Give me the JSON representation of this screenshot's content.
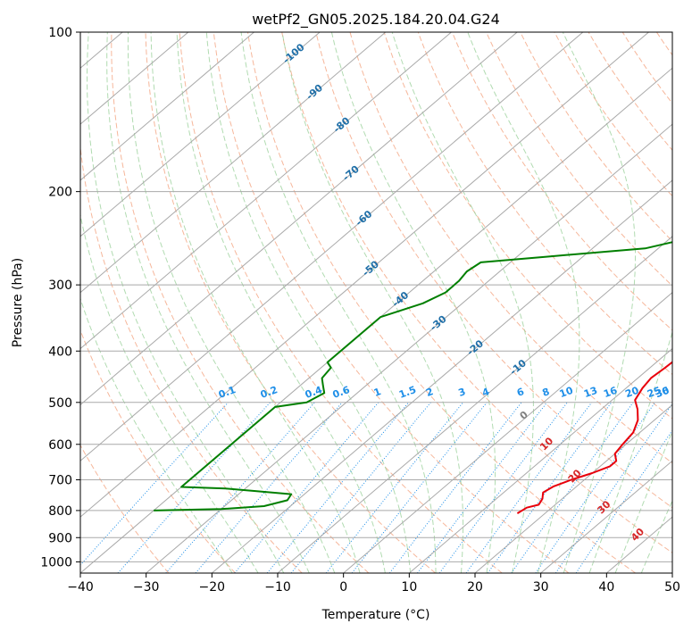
{
  "chart_data": {
    "type": "line",
    "subtype": "skew-t log-p",
    "title": "wetPf2_GN05.2025.184.20.04.G24",
    "xlabel": "Temperature (°C)",
    "ylabel": "Pressure (hPa)",
    "xlim": [
      -40,
      50
    ],
    "ylim": [
      1050,
      100
    ],
    "y_scale": "log",
    "grid": true,
    "x_ticks": [
      -40,
      -30,
      -20,
      -10,
      0,
      10,
      20,
      30,
      40,
      50
    ],
    "x_tick_labels": [
      "−40",
      "−30",
      "−20",
      "−10",
      "0",
      "10",
      "20",
      "30",
      "40",
      "50"
    ],
    "y_ticks": [
      100,
      200,
      300,
      400,
      500,
      600,
      700,
      800,
      900,
      1000
    ],
    "y_tick_labels": [
      "100",
      "200",
      "300",
      "400",
      "500",
      "600",
      "700",
      "800",
      "900",
      "1000"
    ],
    "colors": {
      "temperature": "#e8000b",
      "dewpoint": "#007f00",
      "isotherm": "#a9a9a9",
      "dry_adiabat": "#f4a582",
      "moist_adiabat": "#9ed29e",
      "mixing_ratio": "#1f8fe8",
      "isotherm_label": "#1f6fa8",
      "moist_label": "#d62728",
      "zero_label": "#808080"
    },
    "series": [
      {
        "name": "",
        "role": "temperature",
        "points": [
          [
            15.8,
            810
          ],
          [
            16.2,
            790
          ],
          [
            17.5,
            780
          ],
          [
            17.0,
            760
          ],
          [
            16.0,
            740
          ],
          [
            16.5,
            720
          ],
          [
            18.0,
            700
          ],
          [
            20.0,
            680
          ],
          [
            21.5,
            660
          ],
          [
            21.5,
            645
          ],
          [
            20.0,
            625
          ],
          [
            19.5,
            600
          ],
          [
            19.0,
            570
          ],
          [
            17.5,
            540
          ],
          [
            15.5,
            515
          ],
          [
            13.5,
            495
          ],
          [
            12.5,
            470
          ],
          [
            12.0,
            450
          ],
          [
            12.3,
            430
          ],
          [
            12.5,
            410
          ],
          [
            12.0,
            390
          ],
          [
            10.0,
            360
          ],
          [
            7.0,
            330
          ],
          [
            3.5,
            290
          ],
          [
            1.0,
            262
          ],
          [
            -1.0,
            238
          ],
          [
            -3.0,
            215
          ],
          [
            -2.0,
            205
          ],
          [
            1.5,
            195
          ],
          [
            5.5,
            185
          ],
          [
            8.5,
            177
          ],
          [
            10.0,
            165
          ],
          [
            10.0,
            152
          ],
          [
            10.3,
            145
          ],
          [
            12.0,
            137
          ],
          [
            13.5,
            127
          ],
          [
            13.0,
            119
          ],
          [
            13.0,
            113
          ],
          [
            14.5,
            107
          ],
          [
            16.5,
            100
          ]
        ]
      },
      {
        "name": "",
        "role": "dewpoint",
        "points": [
          [
            -40,
            800
          ],
          [
            -30,
            795
          ],
          [
            -24,
            785
          ],
          [
            -21.5,
            765
          ],
          [
            -22,
            745
          ],
          [
            -28,
            735
          ],
          [
            -33,
            727
          ],
          [
            -40,
            722
          ],
          [
            -40,
            510
          ],
          [
            -36,
            500
          ],
          [
            -35,
            480
          ],
          [
            -36.5,
            465
          ],
          [
            -38,
            450
          ],
          [
            -38.5,
            430
          ],
          [
            -40,
            420
          ],
          [
            -40,
            345
          ],
          [
            -36,
            325
          ],
          [
            -34.5,
            310
          ],
          [
            -34.5,
            295
          ],
          [
            -35,
            283
          ],
          [
            -34.5,
            272
          ],
          [
            -25,
            265
          ],
          [
            -12,
            256
          ],
          [
            -8.5,
            248
          ],
          [
            -8,
            238
          ],
          [
            -5,
            220
          ],
          [
            -1.5,
            200
          ],
          [
            -5,
            192
          ],
          [
            -10,
            185
          ],
          [
            -12,
            180
          ],
          [
            -12,
            175
          ],
          [
            -9,
            165
          ],
          [
            -7,
            158
          ],
          [
            -6.5,
            152
          ],
          [
            -7,
            145
          ],
          [
            -6,
            137
          ],
          [
            -4.5,
            127
          ],
          [
            -2.5,
            120
          ],
          [
            -1,
            113
          ],
          [
            1.5,
            107
          ],
          [
            3.5,
            100
          ]
        ]
      }
    ],
    "isotherm_labels": [
      "-100",
      "-90",
      "-80",
      "-70",
      "-60",
      "-50",
      "-40",
      "-30",
      "-20",
      "-10"
    ],
    "isotherm_label_values": [
      -100,
      -90,
      -80,
      -70,
      -60,
      -50,
      -40,
      -30,
      -20,
      -10
    ],
    "zero_label": "0",
    "mixing_ratio_labels": [
      "0.1",
      "0.2",
      "0.4",
      "0.6",
      "1",
      "1.5",
      "2",
      "3",
      "4",
      "6",
      "8",
      "10",
      "13",
      "16",
      "20",
      "25",
      "30",
      "36"
    ],
    "mixing_ratio_values": [
      0.1,
      0.2,
      0.4,
      0.6,
      1,
      1.5,
      2,
      3,
      4,
      6,
      8,
      10,
      13,
      16,
      20,
      25,
      30,
      36
    ],
    "moist_adiabat_labels": [
      "10",
      "20",
      "30",
      "40"
    ],
    "moist_adiabat_values": [
      10,
      20,
      30,
      40
    ]
  }
}
